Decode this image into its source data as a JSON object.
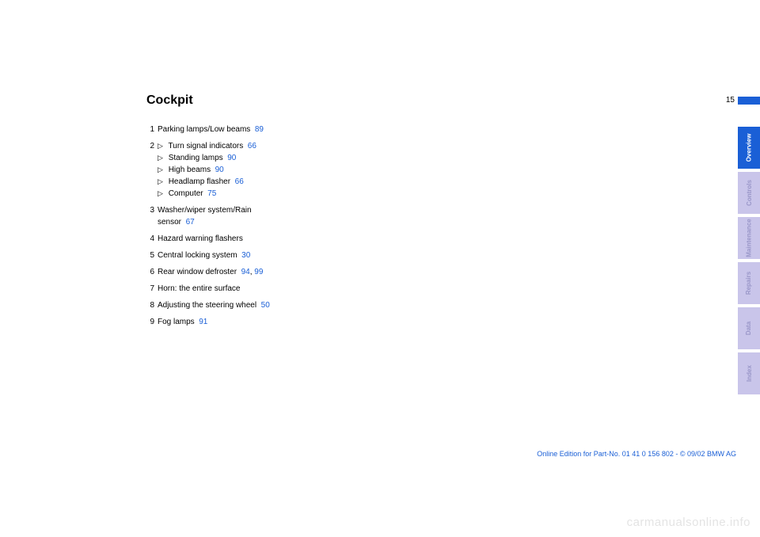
{
  "pageNumber": "15",
  "title": "Cockpit",
  "items": [
    {
      "n": "1",
      "text": "Parking lamps/Low beams",
      "refs": [
        "89"
      ]
    },
    {
      "n": "2",
      "sub": [
        {
          "text": "Turn signal indicators",
          "refs": [
            "66"
          ]
        },
        {
          "text": "Standing lamps",
          "refs": [
            "90"
          ]
        },
        {
          "text": "High beams",
          "refs": [
            "90"
          ]
        },
        {
          "text": "Headlamp flasher",
          "refs": [
            "66"
          ]
        },
        {
          "text": "Computer",
          "refs": [
            "75"
          ]
        }
      ]
    },
    {
      "n": "3",
      "text": "Washer/wiper system/Rain sensor",
      "refs": [
        "67"
      ],
      "wrap": true
    },
    {
      "n": "4",
      "text": "Hazard warning flashers",
      "refs": []
    },
    {
      "n": "5",
      "text": "Central locking system",
      "refs": [
        "30"
      ]
    },
    {
      "n": "6",
      "text": "Rear window defroster",
      "refs": [
        "94",
        "99"
      ]
    },
    {
      "n": "7",
      "text": "Horn: the entire surface",
      "refs": []
    },
    {
      "n": "8",
      "text": "Adjusting the steering wheel",
      "refs": [
        "50"
      ]
    },
    {
      "n": "9",
      "text": "Fog lamps",
      "refs": [
        "91"
      ]
    }
  ],
  "tabs": [
    {
      "label": "Overview",
      "active": true
    },
    {
      "label": "Controls",
      "active": false
    },
    {
      "label": "Maintenance",
      "active": false
    },
    {
      "label": "Repairs",
      "active": false
    },
    {
      "label": "Data",
      "active": false
    },
    {
      "label": "Index",
      "active": false
    }
  ],
  "footer": "Online Edition for Part-No. 01 41 0 156 802 - © 09/02 BMW AG",
  "watermark": "carmanualsonline.info",
  "colors": {
    "link": "#1a5fd6",
    "tabActiveBg": "#1a5fd6",
    "tabInactiveBg": "#c9c5ea",
    "tabInactiveText": "#9a97c9",
    "watermark": "#e4e4e4"
  }
}
